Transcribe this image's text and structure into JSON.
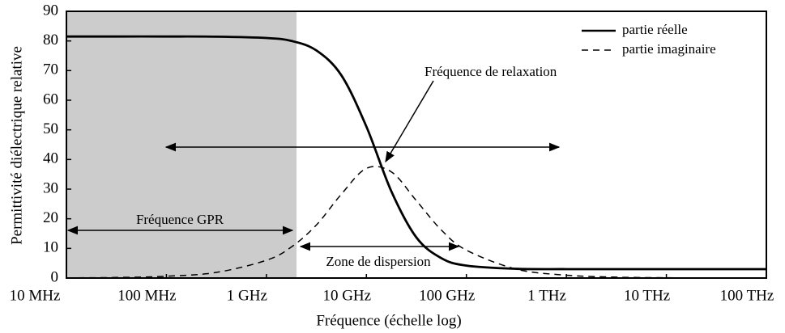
{
  "chart_data": {
    "type": "line",
    "x_label": "Fréquence (échelle log)",
    "y_label": "Permittivité diélectrique relative",
    "x": [
      10000000.0,
      31600000.0,
      100000000.0,
      316000000.0,
      1000000000.0,
      1780000000.0,
      3160000000.0,
      5620000000.0,
      10000000000.0,
      17800000000.0,
      31600000000.0,
      56200000000.0,
      100000000000.0,
      316000000000.0,
      1000000000000.0,
      3160000000000.0,
      10000000000000.0,
      31600000000000.0,
      100000000000000.0
    ],
    "series": [
      {
        "name": "partie réelle",
        "color": "#000000",
        "dash": false,
        "values": [
          81.5,
          81.5,
          81.5,
          81.45,
          81.0,
          80.0,
          76.8,
          68.4,
          51.1,
          29.2,
          13.7,
          6.7,
          4.2,
          3.12,
          3.01,
          3.0,
          3.0,
          3.0,
          3.0
        ]
      },
      {
        "name": "partie imaginaire",
        "color": "#000000",
        "dash": true,
        "values": [
          0.06,
          0.19,
          0.6,
          1.9,
          6.0,
          10.5,
          17.9,
          28.3,
          37.0,
          35.8,
          26.1,
          16.2,
          9.4,
          3.0,
          0.96,
          0.3,
          0.1,
          0.03,
          0.01
        ]
      }
    ],
    "xscale": "log",
    "xlim": [
      10000000.0,
      100000000000000.0
    ],
    "xticks": [
      {
        "value": 10000000.0,
        "label": "10 MHz"
      },
      {
        "value": 100000000.0,
        "label": "100 MHz"
      },
      {
        "value": 1000000000.0,
        "label": "1 GHz"
      },
      {
        "value": 10000000000.0,
        "label": "10 GHz"
      },
      {
        "value": 100000000000.0,
        "label": "100 GHz"
      },
      {
        "value": 1000000000000.0,
        "label": "1 THz"
      },
      {
        "value": 10000000000000.0,
        "label": "10 THz"
      },
      {
        "value": 100000000000000.0,
        "label": "100 THz"
      }
    ],
    "ylim": [
      0,
      90
    ],
    "yticks": [
      0,
      10,
      20,
      30,
      40,
      50,
      60,
      70,
      80,
      90
    ],
    "shaded_band": {
      "from": 10000000.0,
      "to": 2000000000.0,
      "color": "#cccccc"
    },
    "legend": "upper right",
    "annotations": {
      "relaxation": "Fréquence de relaxation",
      "gpr": "Fréquence GPR",
      "dispersion": "Zone de dispersion"
    }
  }
}
